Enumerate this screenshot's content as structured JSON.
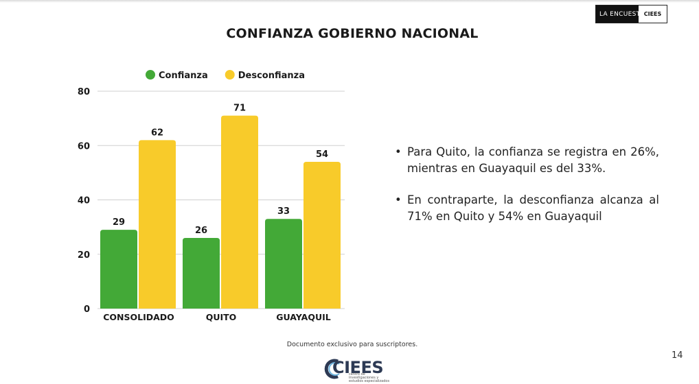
{
  "header": {
    "brand_left": "LA ENCUESTA",
    "brand_right": "CIEES"
  },
  "title": "CONFIANZA GOBIERNO NACIONAL",
  "chart_data": {
    "type": "bar",
    "categories": [
      "CONSOLIDADO",
      "QUITO",
      "GUAYAQUIL"
    ],
    "series": [
      {
        "name": "Confianza",
        "values": [
          29,
          26,
          33
        ],
        "color": "#43a937"
      },
      {
        "name": "Desconfianza",
        "values": [
          62,
          71,
          54
        ],
        "color": "#f8cb2a"
      }
    ],
    "yticks": [
      0,
      20,
      40,
      60,
      80
    ],
    "ylim": [
      0,
      80
    ],
    "grid": true,
    "legend": "top-center",
    "data_labels": true
  },
  "bullets": [
    "Para Quito, la confianza se registra en 26%, mientras en Guayaquil es del 33%.",
    "En contraparte, la desconfianza alcanza al 71% en Quito y 54% en Guayaquil"
  ],
  "footer": {
    "note": "Documento exclusivo para suscriptores.",
    "page_number": "14",
    "logo_text": "CIEES",
    "logo_subtext": "centro de investigaciones y estudios especializados"
  }
}
